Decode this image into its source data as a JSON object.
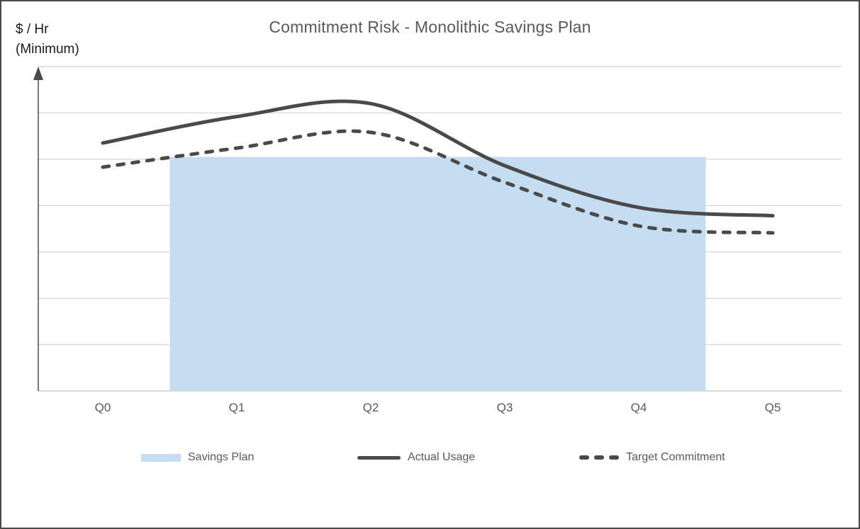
{
  "title": "Commitment Risk - Monolithic Savings Plan",
  "y_axis_label": {
    "line1": "$ / Hr",
    "line2": "(Minimum)"
  },
  "colors": {
    "accent_blue": "#c5ddf1",
    "line_dark": "#4a4a4a",
    "gridline": "#d9d9d9",
    "text_gray": "#595959",
    "text_dark": "#1a1a1a",
    "frame_border": "#4a4a4a"
  },
  "legend": {
    "items": [
      {
        "label": "Savings Plan",
        "swatch": "filled-area"
      },
      {
        "label": "Actual Usage",
        "swatch": "solid-line"
      },
      {
        "label": "Target Commitment",
        "swatch": "dashed-line"
      }
    ],
    "position": "bottom"
  },
  "chart_data": {
    "type": "line",
    "title": "Commitment Risk - Monolithic Savings Plan",
    "ylabel": "$ / Hr (Minimum)",
    "xlabel": "",
    "categories": [
      "Q0",
      "Q1",
      "Q2",
      "Q3",
      "Q4",
      "Q5"
    ],
    "y_axis": {
      "range": [
        0,
        7
      ],
      "gridline_step": 1,
      "numeric_tick_labels_visible": false
    },
    "grid": "horizontal",
    "legend_position": "bottom",
    "series": [
      {
        "name": "Savings Plan",
        "type": "area-band",
        "style": "filled",
        "color": "#c5ddf1",
        "x_span": [
          0.5,
          4.5
        ],
        "value": 5.05,
        "note_units": "gridline units, y axis unlabeled"
      },
      {
        "name": "Actual Usage",
        "type": "line",
        "style": "solid",
        "color": "#4a4a4a",
        "values": [
          5.35,
          5.92,
          6.2,
          4.86,
          3.96,
          3.78
        ]
      },
      {
        "name": "Target Commitment",
        "type": "line",
        "style": "dashed",
        "color": "#4a4a4a",
        "values": [
          4.83,
          5.24,
          5.58,
          4.5,
          3.56,
          3.41
        ]
      }
    ]
  }
}
